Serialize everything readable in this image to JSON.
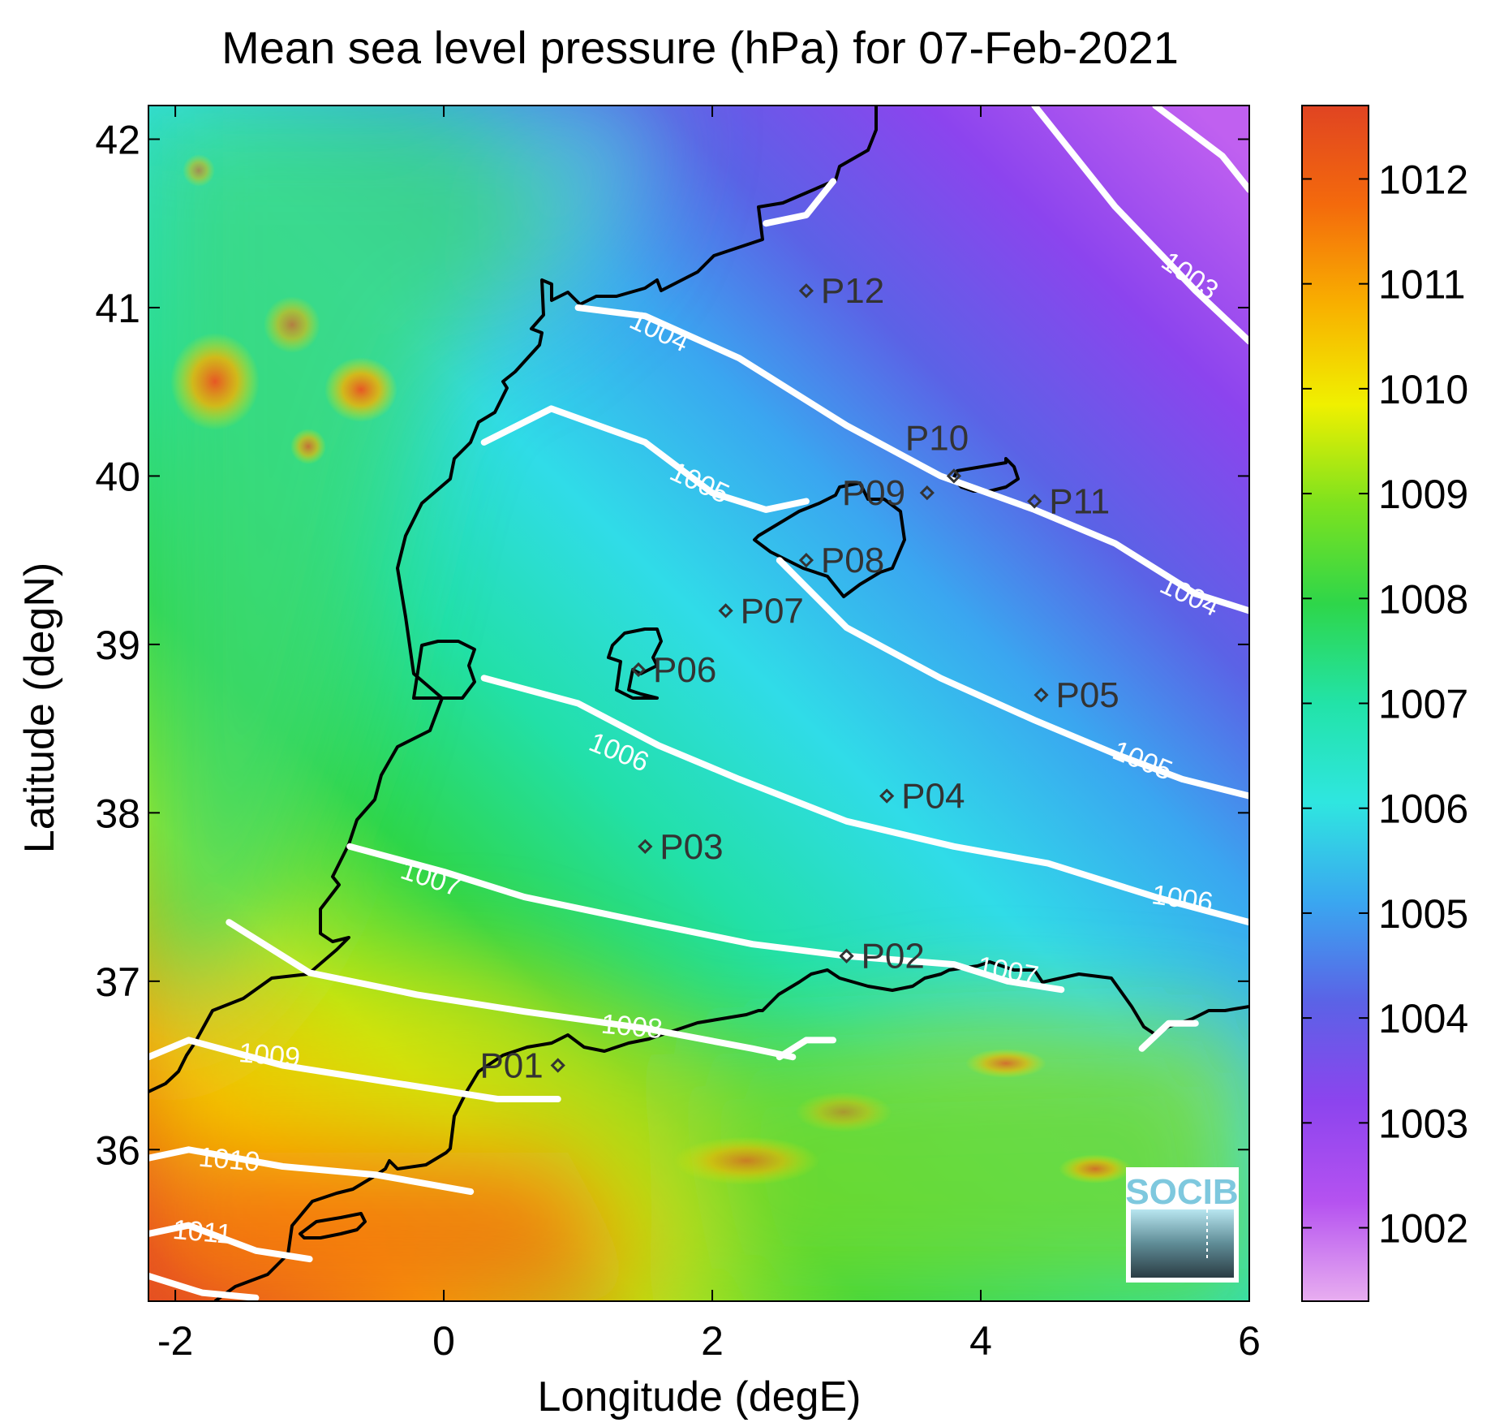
{
  "chart_data": {
    "type": "map",
    "title": "Mean sea level pressure (hPa) for 07-Feb-2021",
    "xlabel": "Longitude (degE)",
    "ylabel": "Latitude (degN)",
    "xlim": [
      -2.2,
      6.0
    ],
    "ylim": [
      35.1,
      42.2
    ],
    "xticks": [
      -2,
      0,
      2,
      4,
      6
    ],
    "yticks": [
      36,
      37,
      38,
      39,
      40,
      41,
      42
    ],
    "colorbar": {
      "min": 1001.3,
      "max": 1012.7,
      "ticks": [
        1002,
        1003,
        1004,
        1005,
        1006,
        1007,
        1008,
        1009,
        1010,
        1011,
        1012
      ],
      "colors": [
        "#e8aef0",
        "#b552f0",
        "#8c44ee",
        "#5b62e6",
        "#3aa6f0",
        "#2fe6e0",
        "#22e3a8",
        "#2ed64a",
        "#7ee21e",
        "#f0f000",
        "#f8b000",
        "#f46a0c",
        "#e04422"
      ]
    },
    "contours": [
      {
        "level": 1003,
        "label": "1003",
        "points": [
          [
            4.4,
            42.2
          ],
          [
            5.0,
            41.6
          ],
          [
            5.6,
            41.1
          ],
          [
            6.0,
            40.8
          ]
        ],
        "label_at": [
          5.55,
          41.18
        ],
        "angle": 35
      },
      {
        "level": 1003,
        "label": "",
        "points": [
          [
            5.3,
            42.2
          ],
          [
            5.8,
            41.9
          ],
          [
            6.0,
            41.7
          ]
        ],
        "label_at": null,
        "angle": 0
      },
      {
        "level": 1004,
        "label": "1004",
        "points": [
          [
            1.0,
            41.0
          ],
          [
            1.5,
            40.95
          ],
          [
            2.2,
            40.7
          ],
          [
            3.0,
            40.3
          ],
          [
            3.7,
            40.0
          ],
          [
            4.4,
            39.8
          ],
          [
            5.0,
            39.6
          ],
          [
            5.6,
            39.3
          ],
          [
            6.0,
            39.2
          ]
        ],
        "label_at": [
          1.6,
          40.85
        ],
        "angle": 25
      },
      {
        "level": 1004,
        "label": "1004",
        "points": [],
        "label_at": [
          5.55,
          39.28
        ],
        "angle": 25
      },
      {
        "level": 1004,
        "label": "",
        "points": [
          [
            2.4,
            41.5
          ],
          [
            2.7,
            41.55
          ],
          [
            2.9,
            41.75
          ]
        ],
        "label_at": null,
        "angle": 0
      },
      {
        "level": 1005,
        "label": "1005",
        "points": [
          [
            0.3,
            40.2
          ],
          [
            0.8,
            40.4
          ],
          [
            1.5,
            40.2
          ],
          [
            2.0,
            39.9
          ],
          [
            2.4,
            39.8
          ],
          [
            2.7,
            39.85
          ]
        ],
        "label_at": [
          1.9,
          39.95
        ],
        "angle": 25
      },
      {
        "level": 1005,
        "label": "1005",
        "points": [
          [
            2.5,
            39.5
          ],
          [
            3.0,
            39.1
          ],
          [
            3.7,
            38.8
          ],
          [
            4.4,
            38.55
          ],
          [
            5.0,
            38.35
          ],
          [
            5.5,
            38.2
          ],
          [
            6.0,
            38.1
          ]
        ],
        "label_at": [
          5.2,
          38.3
        ],
        "angle": 22
      },
      {
        "level": 1006,
        "label": "1006",
        "points": [
          [
            0.3,
            38.8
          ],
          [
            1.0,
            38.65
          ],
          [
            1.6,
            38.4
          ],
          [
            2.2,
            38.2
          ],
          [
            3.0,
            37.95
          ],
          [
            3.8,
            37.8
          ],
          [
            4.5,
            37.7
          ],
          [
            5.3,
            37.5
          ],
          [
            6.0,
            37.35
          ]
        ],
        "label_at": [
          1.3,
          38.35
        ],
        "angle": 22
      },
      {
        "level": 1006,
        "label": "1006",
        "points": [],
        "label_at": [
          5.5,
          37.48
        ],
        "angle": 8
      },
      {
        "level": 1007,
        "label": "1007",
        "points": [
          [
            -0.7,
            37.8
          ],
          [
            0.0,
            37.65
          ],
          [
            0.6,
            37.5
          ],
          [
            1.5,
            37.35
          ],
          [
            2.3,
            37.22
          ],
          [
            3.0,
            37.15
          ],
          [
            3.8,
            37.1
          ],
          [
            4.2,
            37.0
          ],
          [
            4.6,
            36.95
          ]
        ],
        "label_at": [
          -0.1,
          37.6
        ],
        "angle": 18
      },
      {
        "level": 1007,
        "label": "1007",
        "points": [],
        "label_at": [
          4.2,
          37.05
        ],
        "angle": 10
      },
      {
        "level": 1008,
        "label": "1008",
        "points": [
          [
            -1.6,
            37.35
          ],
          [
            -1.0,
            37.05
          ],
          [
            -0.2,
            36.92
          ],
          [
            0.6,
            36.82
          ],
          [
            1.5,
            36.72
          ],
          [
            2.3,
            36.6
          ],
          [
            2.6,
            36.55
          ]
        ],
        "label_at": [
          1.4,
          36.72
        ],
        "angle": 5
      },
      {
        "level": 1008,
        "label": "",
        "points": [
          [
            2.5,
            36.55
          ],
          [
            2.7,
            36.65
          ],
          [
            2.9,
            36.65
          ]
        ],
        "label_at": null,
        "angle": 0
      },
      {
        "level": 1008,
        "label": "",
        "points": [
          [
            5.2,
            36.6
          ],
          [
            5.4,
            36.75
          ],
          [
            5.6,
            36.75
          ]
        ],
        "label_at": null,
        "angle": 0
      },
      {
        "level": 1009,
        "label": "1009",
        "points": [
          [
            -2.2,
            36.55
          ],
          [
            -1.9,
            36.65
          ],
          [
            -1.2,
            36.5
          ],
          [
            -0.4,
            36.4
          ],
          [
            0.4,
            36.3
          ],
          [
            0.85,
            36.3
          ]
        ],
        "label_at": [
          -1.3,
          36.55
        ],
        "angle": 5
      },
      {
        "level": 1010,
        "label": "1010",
        "points": [
          [
            -2.2,
            35.95
          ],
          [
            -1.9,
            36.0
          ],
          [
            -1.2,
            35.9
          ],
          [
            -0.5,
            35.85
          ],
          [
            0.2,
            35.75
          ]
        ],
        "label_at": [
          -1.6,
          35.93
        ],
        "angle": 5
      },
      {
        "level": 1011,
        "label": "1011",
        "points": [
          [
            -2.2,
            35.5
          ],
          [
            -1.9,
            35.55
          ],
          [
            -1.4,
            35.4
          ],
          [
            -1.0,
            35.35
          ]
        ],
        "label_at": [
          -1.8,
          35.5
        ],
        "angle": 5
      },
      {
        "level": 1012,
        "label": "",
        "points": [
          [
            -2.2,
            35.25
          ],
          [
            -1.8,
            35.15
          ],
          [
            -1.4,
            35.12
          ]
        ],
        "label_at": null,
        "angle": 0
      }
    ],
    "stations": [
      {
        "name": "P01",
        "lon": 0.85,
        "lat": 36.5
      },
      {
        "name": "P02",
        "lon": 3.0,
        "lat": 37.15
      },
      {
        "name": "P03",
        "lon": 1.5,
        "lat": 37.8
      },
      {
        "name": "P04",
        "lon": 3.3,
        "lat": 38.1
      },
      {
        "name": "P05",
        "lon": 4.45,
        "lat": 38.7
      },
      {
        "name": "P06",
        "lon": 1.45,
        "lat": 38.85
      },
      {
        "name": "P07",
        "lon": 2.1,
        "lat": 39.2
      },
      {
        "name": "P08",
        "lon": 2.7,
        "lat": 39.5
      },
      {
        "name": "P09",
        "lon": 3.6,
        "lat": 39.9
      },
      {
        "name": "P10",
        "lon": 3.8,
        "lat": 40.0
      },
      {
        "name": "P11",
        "lon": 4.4,
        "lat": 39.85
      },
      {
        "name": "P12",
        "lon": 2.7,
        "lat": 41.1
      }
    ],
    "logo": "SOCIB"
  }
}
